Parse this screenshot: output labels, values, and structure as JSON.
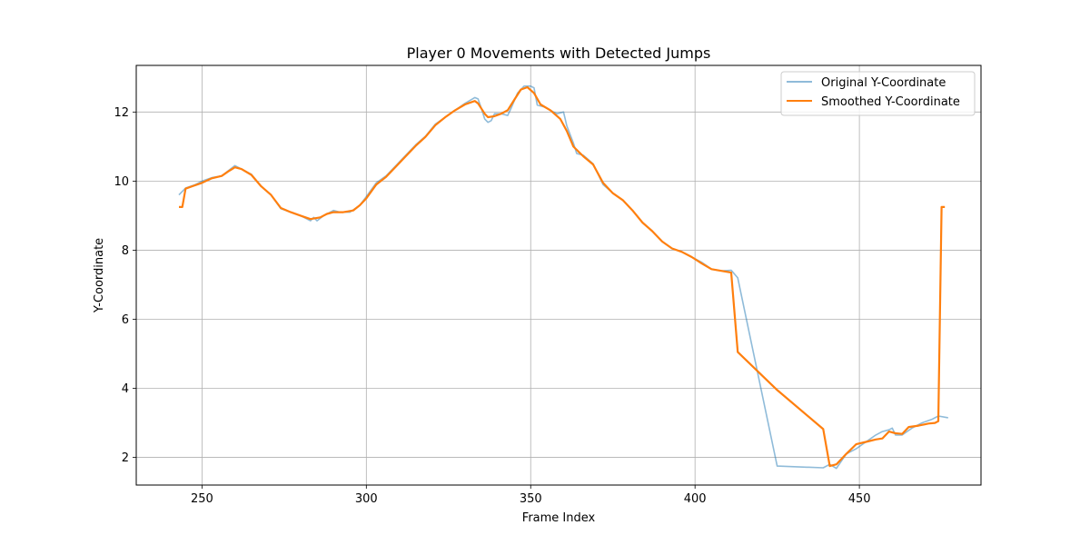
{
  "chart_data": {
    "type": "line",
    "title": "Player 0 Movements with Detected Jumps",
    "xlabel": "Frame Index",
    "ylabel": "Y-Coordinate",
    "xlim": [
      230,
      487
    ],
    "ylim": [
      1.2,
      13.35
    ],
    "xticks": [
      250,
      300,
      350,
      400,
      450
    ],
    "yticks": [
      2,
      4,
      6,
      8,
      10,
      12
    ],
    "grid": true,
    "legend": "top-right",
    "series": [
      {
        "name": "Original Y-Coordinate",
        "color": "#1f77b4",
        "opacity": 0.5,
        "points": [
          [
            243,
            9.6
          ],
          [
            245,
            9.8
          ],
          [
            248,
            9.9
          ],
          [
            250,
            10.0
          ],
          [
            253,
            10.1
          ],
          [
            256,
            10.15
          ],
          [
            258,
            10.3
          ],
          [
            260,
            10.45
          ],
          [
            262,
            10.35
          ],
          [
            265,
            10.2
          ],
          [
            268,
            9.85
          ],
          [
            271,
            9.6
          ],
          [
            274,
            9.2
          ],
          [
            277,
            9.1
          ],
          [
            280,
            9.0
          ],
          [
            283,
            8.85
          ],
          [
            284,
            8.95
          ],
          [
            285,
            8.85
          ],
          [
            287,
            9.0
          ],
          [
            290,
            9.15
          ],
          [
            292,
            9.1
          ],
          [
            295,
            9.1
          ],
          [
            298,
            9.3
          ],
          [
            300,
            9.55
          ],
          [
            303,
            9.95
          ],
          [
            306,
            10.15
          ],
          [
            309,
            10.45
          ],
          [
            312,
            10.75
          ],
          [
            315,
            11.05
          ],
          [
            318,
            11.3
          ],
          [
            321,
            11.65
          ],
          [
            324,
            11.85
          ],
          [
            327,
            12.05
          ],
          [
            330,
            12.25
          ],
          [
            333,
            12.42
          ],
          [
            334,
            12.38
          ],
          [
            335,
            12.1
          ],
          [
            336,
            11.8
          ],
          [
            337,
            11.7
          ],
          [
            338,
            11.75
          ],
          [
            339,
            11.95
          ],
          [
            341,
            11.95
          ],
          [
            343,
            11.9
          ],
          [
            344,
            12.1
          ],
          [
            346,
            12.55
          ],
          [
            348,
            12.75
          ],
          [
            350,
            12.75
          ],
          [
            351,
            12.7
          ],
          [
            352,
            12.2
          ],
          [
            354,
            12.15
          ],
          [
            356,
            12.05
          ],
          [
            358,
            11.95
          ],
          [
            360,
            12.0
          ],
          [
            361,
            11.6
          ],
          [
            363,
            11.1
          ],
          [
            364,
            10.8
          ],
          [
            366,
            10.75
          ],
          [
            369,
            10.5
          ],
          [
            372,
            9.9
          ],
          [
            375,
            9.65
          ],
          [
            378,
            9.45
          ],
          [
            381,
            9.15
          ],
          [
            384,
            8.8
          ],
          [
            387,
            8.55
          ],
          [
            390,
            8.25
          ],
          [
            393,
            8.05
          ],
          [
            396,
            7.95
          ],
          [
            399,
            7.8
          ],
          [
            402,
            7.65
          ],
          [
            405,
            7.45
          ],
          [
            408,
            7.4
          ],
          [
            411,
            7.42
          ],
          [
            413,
            7.2
          ],
          [
            425,
            1.75
          ],
          [
            439,
            1.7
          ],
          [
            441,
            1.8
          ],
          [
            443,
            1.68
          ],
          [
            446,
            2.1
          ],
          [
            449,
            2.25
          ],
          [
            452,
            2.45
          ],
          [
            455,
            2.65
          ],
          [
            457,
            2.75
          ],
          [
            459,
            2.8
          ],
          [
            460,
            2.85
          ],
          [
            461,
            2.65
          ],
          [
            463,
            2.65
          ],
          [
            466,
            2.85
          ],
          [
            469,
            3.0
          ],
          [
            472,
            3.1
          ],
          [
            474,
            3.2
          ],
          [
            477,
            3.15
          ]
        ]
      },
      {
        "name": "Smoothed Y-Coordinate",
        "color": "#ff7f0e",
        "opacity": 1,
        "points": [
          [
            243,
            9.25
          ],
          [
            244,
            9.25
          ],
          [
            245,
            9.78
          ],
          [
            247,
            9.85
          ],
          [
            250,
            9.95
          ],
          [
            253,
            10.08
          ],
          [
            256,
            10.15
          ],
          [
            258,
            10.28
          ],
          [
            260,
            10.4
          ],
          [
            262,
            10.35
          ],
          [
            265,
            10.18
          ],
          [
            268,
            9.85
          ],
          [
            271,
            9.6
          ],
          [
            274,
            9.22
          ],
          [
            277,
            9.1
          ],
          [
            280,
            9.0
          ],
          [
            283,
            8.9
          ],
          [
            286,
            8.95
          ],
          [
            288,
            9.05
          ],
          [
            290,
            9.1
          ],
          [
            293,
            9.1
          ],
          [
            296,
            9.15
          ],
          [
            298,
            9.3
          ],
          [
            300,
            9.5
          ],
          [
            303,
            9.9
          ],
          [
            306,
            10.12
          ],
          [
            309,
            10.42
          ],
          [
            312,
            10.72
          ],
          [
            315,
            11.02
          ],
          [
            318,
            11.28
          ],
          [
            321,
            11.62
          ],
          [
            324,
            11.85
          ],
          [
            327,
            12.05
          ],
          [
            330,
            12.22
          ],
          [
            333,
            12.32
          ],
          [
            334,
            12.25
          ],
          [
            336,
            11.95
          ],
          [
            337,
            11.85
          ],
          [
            339,
            11.88
          ],
          [
            341,
            11.95
          ],
          [
            343,
            12.05
          ],
          [
            345,
            12.35
          ],
          [
            347,
            12.65
          ],
          [
            349,
            12.72
          ],
          [
            351,
            12.55
          ],
          [
            353,
            12.22
          ],
          [
            356,
            12.05
          ],
          [
            359,
            11.8
          ],
          [
            361,
            11.45
          ],
          [
            363,
            11.0
          ],
          [
            366,
            10.72
          ],
          [
            369,
            10.48
          ],
          [
            372,
            9.95
          ],
          [
            375,
            9.65
          ],
          [
            378,
            9.45
          ],
          [
            381,
            9.15
          ],
          [
            384,
            8.8
          ],
          [
            387,
            8.55
          ],
          [
            390,
            8.25
          ],
          [
            393,
            8.05
          ],
          [
            396,
            7.95
          ],
          [
            399,
            7.8
          ],
          [
            402,
            7.62
          ],
          [
            405,
            7.45
          ],
          [
            408,
            7.4
          ],
          [
            411,
            7.35
          ],
          [
            413,
            5.05
          ],
          [
            425,
            3.95
          ],
          [
            439,
            2.82
          ],
          [
            441,
            1.75
          ],
          [
            443,
            1.8
          ],
          [
            446,
            2.1
          ],
          [
            449,
            2.38
          ],
          [
            452,
            2.45
          ],
          [
            455,
            2.52
          ],
          [
            457,
            2.55
          ],
          [
            459,
            2.75
          ],
          [
            461,
            2.7
          ],
          [
            463,
            2.68
          ],
          [
            465,
            2.88
          ],
          [
            468,
            2.92
          ],
          [
            471,
            2.98
          ],
          [
            473,
            3.0
          ],
          [
            474,
            3.05
          ],
          [
            475,
            9.25
          ],
          [
            476,
            9.25
          ]
        ]
      }
    ]
  }
}
